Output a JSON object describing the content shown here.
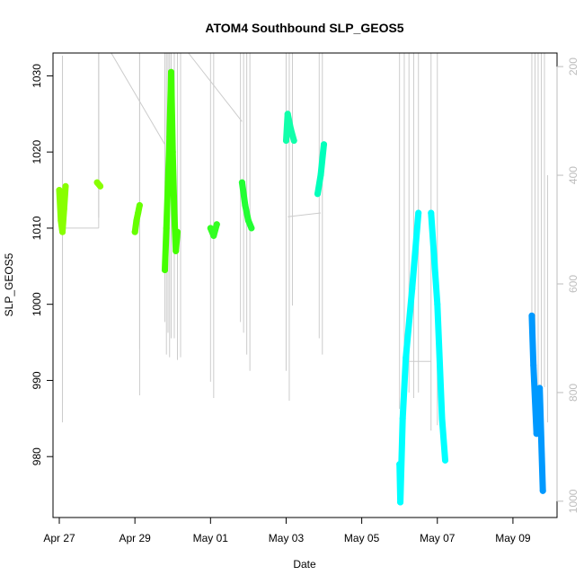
{
  "chart_data": {
    "type": "scatter",
    "title": "ATOM4 Southbound SLP_GEOS5",
    "xlabel": "Date",
    "ylabel": "SLP_GEOS5",
    "x_ticks": [
      "Apr 27",
      "Apr 29",
      "May 01",
      "May 03",
      "May 05",
      "May 07",
      "May 09"
    ],
    "y_ticks": [
      980,
      990,
      1000,
      1010,
      1020,
      1030
    ],
    "y2_ticks": [
      200,
      400,
      600,
      800,
      1000
    ],
    "xlim": [
      "2016-04-26T20:00",
      "2016-05-10T04:00"
    ],
    "ylim": [
      972,
      1033
    ],
    "y2lim": [
      175,
      1030
    ],
    "colors": {
      "y2_axis": "#bdbdbd",
      "profile_lines": "#cccccc"
    },
    "series": [
      {
        "color": "#88ff00",
        "points": [
          [
            "2016-04-27T00:00",
            1015
          ],
          [
            "2016-04-27T01:00",
            1011
          ],
          [
            "2016-04-27T02:00",
            1009.5
          ],
          [
            "2016-04-27T03:00",
            1012.5
          ],
          [
            "2016-04-27T04:00",
            1015.5
          ]
        ]
      },
      {
        "color": "#88ff00",
        "points": [
          [
            "2016-04-28T00:00",
            1016
          ],
          [
            "2016-04-28T02:00",
            1015.5
          ]
        ]
      },
      {
        "color": "#66ff00",
        "points": [
          [
            "2016-04-29T00:00",
            1009.5
          ],
          [
            "2016-04-29T01:00",
            1011
          ],
          [
            "2016-04-29T02:00",
            1012
          ],
          [
            "2016-04-29T03:00",
            1013
          ]
        ]
      },
      {
        "color": "#44ff00",
        "points": [
          [
            "2016-04-29T19:00",
            1004.5
          ],
          [
            "2016-04-29T20:00",
            1010
          ],
          [
            "2016-04-29T21:00",
            1016
          ],
          [
            "2016-04-29T22:00",
            1022
          ],
          [
            "2016-04-29T23:00",
            1030.5
          ],
          [
            "2016-04-30T00:00",
            1020
          ],
          [
            "2016-04-30T01:00",
            1012
          ],
          [
            "2016-04-30T02:00",
            1007
          ],
          [
            "2016-04-30T03:00",
            1009.5
          ]
        ]
      },
      {
        "color": "#33ff22",
        "points": [
          [
            "2016-05-01T00:00",
            1010
          ],
          [
            "2016-05-01T02:00",
            1009
          ],
          [
            "2016-05-01T04:00",
            1010.5
          ]
        ]
      },
      {
        "color": "#22ff33",
        "points": [
          [
            "2016-05-01T20:00",
            1016
          ],
          [
            "2016-05-01T22:00",
            1013
          ],
          [
            "2016-05-02T00:00",
            1011
          ],
          [
            "2016-05-02T02:00",
            1010
          ]
        ]
      },
      {
        "color": "#11ffaa",
        "points": [
          [
            "2016-05-03T00:00",
            1021.5
          ],
          [
            "2016-05-03T01:00",
            1025
          ],
          [
            "2016-05-03T03:00",
            1023
          ],
          [
            "2016-05-03T05:00",
            1021.5
          ]
        ]
      },
      {
        "color": "#00ffbb",
        "points": [
          [
            "2016-05-03T20:00",
            1014.5
          ],
          [
            "2016-05-03T22:00",
            1017
          ],
          [
            "2016-05-04T00:00",
            1021
          ]
        ]
      },
      {
        "color": "#00ffff",
        "points": [
          [
            "2016-05-06T00:00",
            979
          ],
          [
            "2016-05-06T00:30",
            974
          ],
          [
            "2016-05-06T02:00",
            985
          ],
          [
            "2016-05-06T04:00",
            993
          ],
          [
            "2016-05-06T08:00",
            1002
          ],
          [
            "2016-05-06T12:00",
            1012
          ]
        ]
      },
      {
        "color": "#00ffff",
        "points": [
          [
            "2016-05-06T20:00",
            1012
          ],
          [
            "2016-05-07T00:00",
            1000
          ],
          [
            "2016-05-07T03:00",
            985
          ],
          [
            "2016-05-07T05:00",
            979.5
          ]
        ]
      },
      {
        "color": "#0099ff",
        "points": [
          [
            "2016-05-09T12:00",
            998.5
          ],
          [
            "2016-05-09T13:00",
            992
          ],
          [
            "2016-05-09T15:00",
            983
          ],
          [
            "2016-05-09T17:00",
            989
          ],
          [
            "2016-05-09T19:00",
            975.5
          ]
        ]
      }
    ],
    "profile_lines": [
      {
        "x": "2016-04-27T02:00",
        "y2": [
          180,
          820
        ]
      },
      {
        "x": "2016-04-27T02:00",
        "y2": [
          180,
          855
        ]
      },
      {
        "x": "2016-04-28T01:00",
        "y2": [
          175,
          478
        ]
      },
      {
        "x": "2016-04-29T03:00",
        "y2": [
          175,
          720
        ]
      },
      {
        "x": "2016-04-29T03:00",
        "y2": [
          175,
          805
        ]
      },
      {
        "x": "2016-04-29T19:00",
        "y2": [
          175,
          670
        ]
      },
      {
        "x": "2016-04-29T20:00",
        "y2": [
          175,
          730
        ]
      },
      {
        "x": "2016-04-29T21:00",
        "y2": [
          175,
          690
        ]
      },
      {
        "x": "2016-04-29T22:00",
        "y2": [
          175,
          735
        ]
      },
      {
        "x": "2016-04-29T23:00",
        "y2": [
          175,
          700
        ]
      },
      {
        "x": "2016-04-30T01:00",
        "y2": [
          175,
          700
        ]
      },
      {
        "x": "2016-04-30T03:00",
        "y2": [
          175,
          740
        ]
      },
      {
        "x": "2016-04-30T05:00",
        "y2": [
          175,
          735
        ]
      },
      {
        "x": "2016-05-01T00:00",
        "y2": [
          175,
          780
        ]
      },
      {
        "x": "2016-05-01T02:00",
        "y2": [
          175,
          810
        ]
      },
      {
        "x": "2016-05-01T19:00",
        "y2": [
          175,
          670
        ]
      },
      {
        "x": "2016-05-01T21:00",
        "y2": [
          175,
          690
        ]
      },
      {
        "x": "2016-05-01T23:00",
        "y2": [
          175,
          730
        ]
      },
      {
        "x": "2016-05-02T01:00",
        "y2": [
          175,
          760
        ]
      },
      {
        "x": "2016-05-03T00:00",
        "y2": [
          175,
          760
        ]
      },
      {
        "x": "2016-05-03T02:00",
        "y2": [
          175,
          815
        ]
      },
      {
        "x": "2016-05-03T04:00",
        "y2": [
          175,
          640
        ]
      },
      {
        "x": "2016-05-03T21:00",
        "y2": [
          175,
          700
        ]
      },
      {
        "x": "2016-05-03T23:00",
        "y2": [
          175,
          730
        ]
      },
      {
        "x": "2016-05-06T00:00",
        "y2": [
          175,
          830
        ]
      },
      {
        "x": "2016-05-06T03:00",
        "y2": [
          175,
          790
        ]
      },
      {
        "x": "2016-05-06T06:00",
        "y2": [
          175,
          800
        ]
      },
      {
        "x": "2016-05-06T09:00",
        "y2": [
          175,
          810
        ]
      },
      {
        "x": "2016-05-06T12:00",
        "y2": [
          175,
          800
        ]
      },
      {
        "x": "2016-05-06T20:00",
        "y2": [
          175,
          870
        ]
      },
      {
        "x": "2016-05-07T00:00",
        "y2": [
          175,
          860
        ]
      },
      {
        "x": "2016-05-09T12:00",
        "y2": [
          175,
          740
        ]
      },
      {
        "x": "2016-05-09T14:00",
        "y2": [
          175,
          790
        ]
      },
      {
        "x": "2016-05-09T16:00",
        "y2": [
          175,
          800
        ]
      },
      {
        "x": "2016-05-09T18:00",
        "y2": [
          175,
          805
        ]
      },
      {
        "x": "2016-05-09T20:00",
        "y2": [
          175,
          790
        ]
      },
      {
        "x": "2016-05-09T22:00",
        "y2": [
          400,
          855
        ]
      }
    ],
    "connector_lines": [
      {
        "from": [
          "2016-04-27T02:00",
          1010
        ],
        "to": [
          "2016-04-28T01:00",
          1010
        ]
      },
      {
        "from": [
          "2016-04-28T01:00",
          1010
        ],
        "to": [
          "2016-04-28T01:00",
          1033
        ]
      },
      {
        "from": [
          "2016-04-28T09:00",
          1033
        ],
        "to": [
          "2016-04-29T19:00",
          1021
        ]
      },
      {
        "from": [
          "2016-04-30T10:00",
          1033
        ],
        "to": [
          "2016-05-01T20:00",
          1024
        ]
      },
      {
        "from": [
          "2016-05-03T01:00",
          1011.5
        ],
        "to": [
          "2016-05-03T22:00",
          1012
        ]
      },
      {
        "from": [
          "2016-05-06T03:00",
          992.5
        ],
        "to": [
          "2016-05-06T20:00",
          992.5
        ]
      }
    ]
  }
}
